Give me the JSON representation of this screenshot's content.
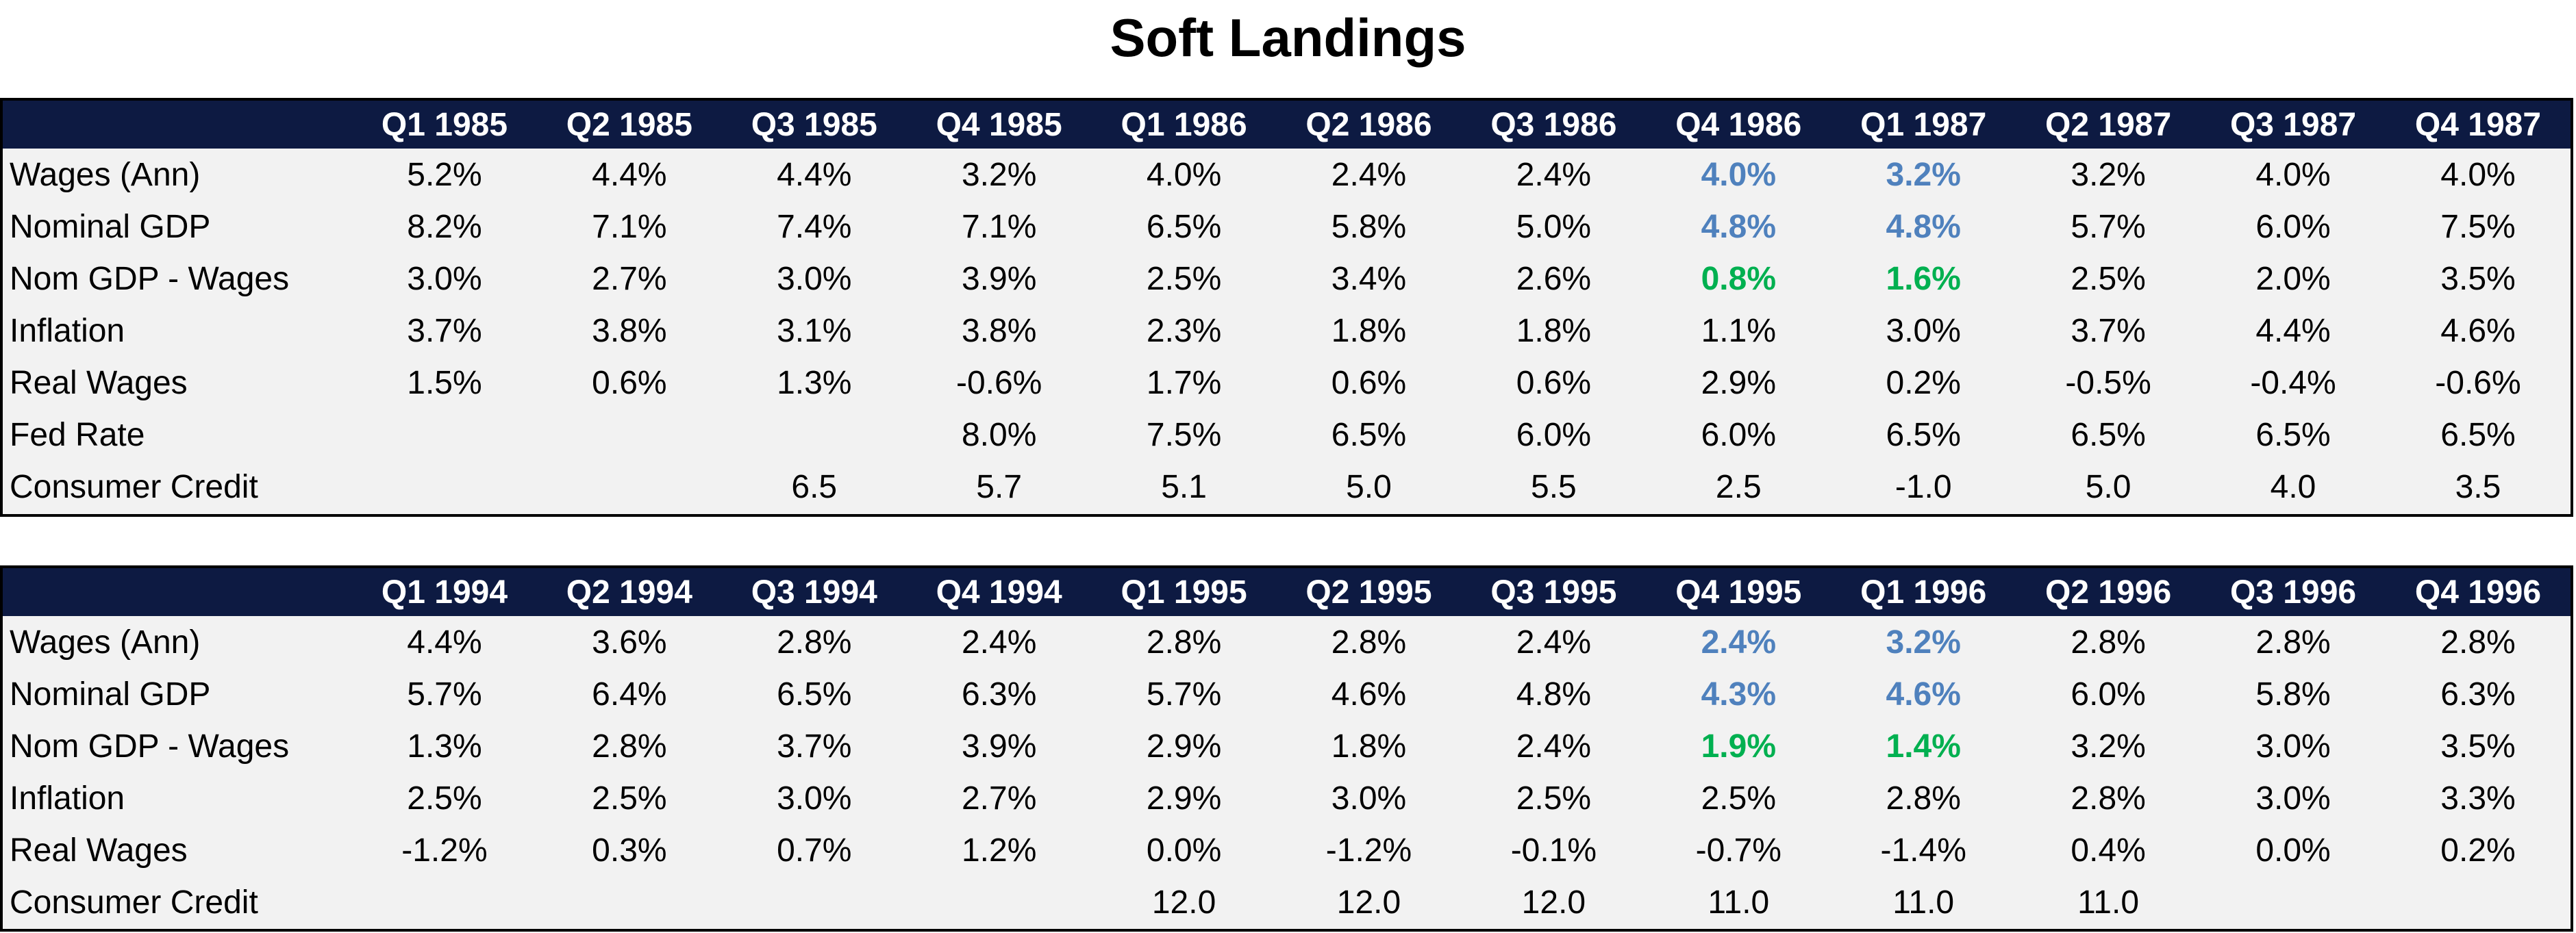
{
  "title": "Soft Landings",
  "colors": {
    "header_bg": "#0d1a42",
    "highlight_blue": "#4f81bd",
    "highlight_green": "#00b050",
    "body_bg": "#f2f2f2"
  },
  "tables": [
    {
      "headers": [
        "",
        "Q1 1985",
        "Q2 1985",
        "Q3 1985",
        "Q4 1985",
        "Q1 1986",
        "Q2 1986",
        "Q3 1986",
        "Q4 1986",
        "Q1 1987",
        "Q2 1987",
        "Q3 1987",
        "Q4 1987"
      ],
      "rows": [
        {
          "label": "Wages (Ann)",
          "cells": [
            "5.2%",
            "4.4%",
            "4.4%",
            "3.2%",
            "4.0%",
            "2.4%",
            "2.4%",
            "4.0%",
            "3.2%",
            "3.2%",
            "4.0%",
            "4.0%"
          ]
        },
        {
          "label": "Nominal GDP",
          "cells": [
            "8.2%",
            "7.1%",
            "7.4%",
            "7.1%",
            "6.5%",
            "5.8%",
            "5.0%",
            "4.8%",
            "4.8%",
            "5.7%",
            "6.0%",
            "7.5%"
          ]
        },
        {
          "label": "Nom GDP - Wages",
          "cells": [
            "3.0%",
            "2.7%",
            "3.0%",
            "3.9%",
            "2.5%",
            "3.4%",
            "2.6%",
            "0.8%",
            "1.6%",
            "2.5%",
            "2.0%",
            "3.5%"
          ]
        },
        {
          "label": "Inflation",
          "cells": [
            "3.7%",
            "3.8%",
            "3.1%",
            "3.8%",
            "2.3%",
            "1.8%",
            "1.8%",
            "1.1%",
            "3.0%",
            "3.7%",
            "4.4%",
            "4.6%"
          ]
        },
        {
          "label": "Real Wages",
          "cells": [
            "1.5%",
            "0.6%",
            "1.3%",
            "-0.6%",
            "1.7%",
            "0.6%",
            "0.6%",
            "2.9%",
            "0.2%",
            "-0.5%",
            "-0.4%",
            "-0.6%"
          ]
        },
        {
          "label": "Fed Rate",
          "cells": [
            "",
            "",
            "",
            "8.0%",
            "7.5%",
            "6.5%",
            "6.0%",
            "6.0%",
            "6.5%",
            "6.5%",
            "6.5%",
            "6.5%"
          ]
        },
        {
          "label": "Consumer Credit",
          "cells": [
            "",
            "",
            "6.5",
            "5.7",
            "5.1",
            "5.0",
            "5.5",
            "2.5",
            "-1.0",
            "5.0",
            "4.0",
            "3.5"
          ]
        }
      ]
    },
    {
      "headers": [
        "",
        "Q1 1994",
        "Q2 1994",
        "Q3 1994",
        "Q4 1994",
        "Q1 1995",
        "Q2 1995",
        "Q3 1995",
        "Q4 1995",
        "Q1 1996",
        "Q2 1996",
        "Q3 1996",
        "Q4 1996"
      ],
      "rows": [
        {
          "label": "Wages (Ann)",
          "cells": [
            "4.4%",
            "3.6%",
            "2.8%",
            "2.4%",
            "2.8%",
            "2.8%",
            "2.4%",
            "2.4%",
            "3.2%",
            "2.8%",
            "2.8%",
            "2.8%"
          ]
        },
        {
          "label": "Nominal GDP",
          "cells": [
            "5.7%",
            "6.4%",
            "6.5%",
            "6.3%",
            "5.7%",
            "4.6%",
            "4.8%",
            "4.3%",
            "4.6%",
            "6.0%",
            "5.8%",
            "6.3%"
          ]
        },
        {
          "label": "Nom GDP - Wages",
          "cells": [
            "1.3%",
            "2.8%",
            "3.7%",
            "3.9%",
            "2.9%",
            "1.8%",
            "2.4%",
            "1.9%",
            "1.4%",
            "3.2%",
            "3.0%",
            "3.5%"
          ]
        },
        {
          "label": "Inflation",
          "cells": [
            "2.5%",
            "2.5%",
            "3.0%",
            "2.7%",
            "2.9%",
            "3.0%",
            "2.5%",
            "2.5%",
            "2.8%",
            "2.8%",
            "3.0%",
            "3.3%"
          ]
        },
        {
          "label": "Real Wages",
          "cells": [
            "-1.2%",
            "0.3%",
            "0.7%",
            "1.2%",
            "0.0%",
            "-1.2%",
            "-0.1%",
            "-0.7%",
            "-1.4%",
            "0.4%",
            "0.0%",
            "0.2%"
          ]
        },
        {
          "label": "Consumer Credit",
          "cells": [
            "",
            "",
            "",
            "",
            "12.0",
            "12.0",
            "12.0",
            "11.0",
            "11.0",
            "11.0",
            "",
            ""
          ]
        }
      ]
    }
  ]
}
